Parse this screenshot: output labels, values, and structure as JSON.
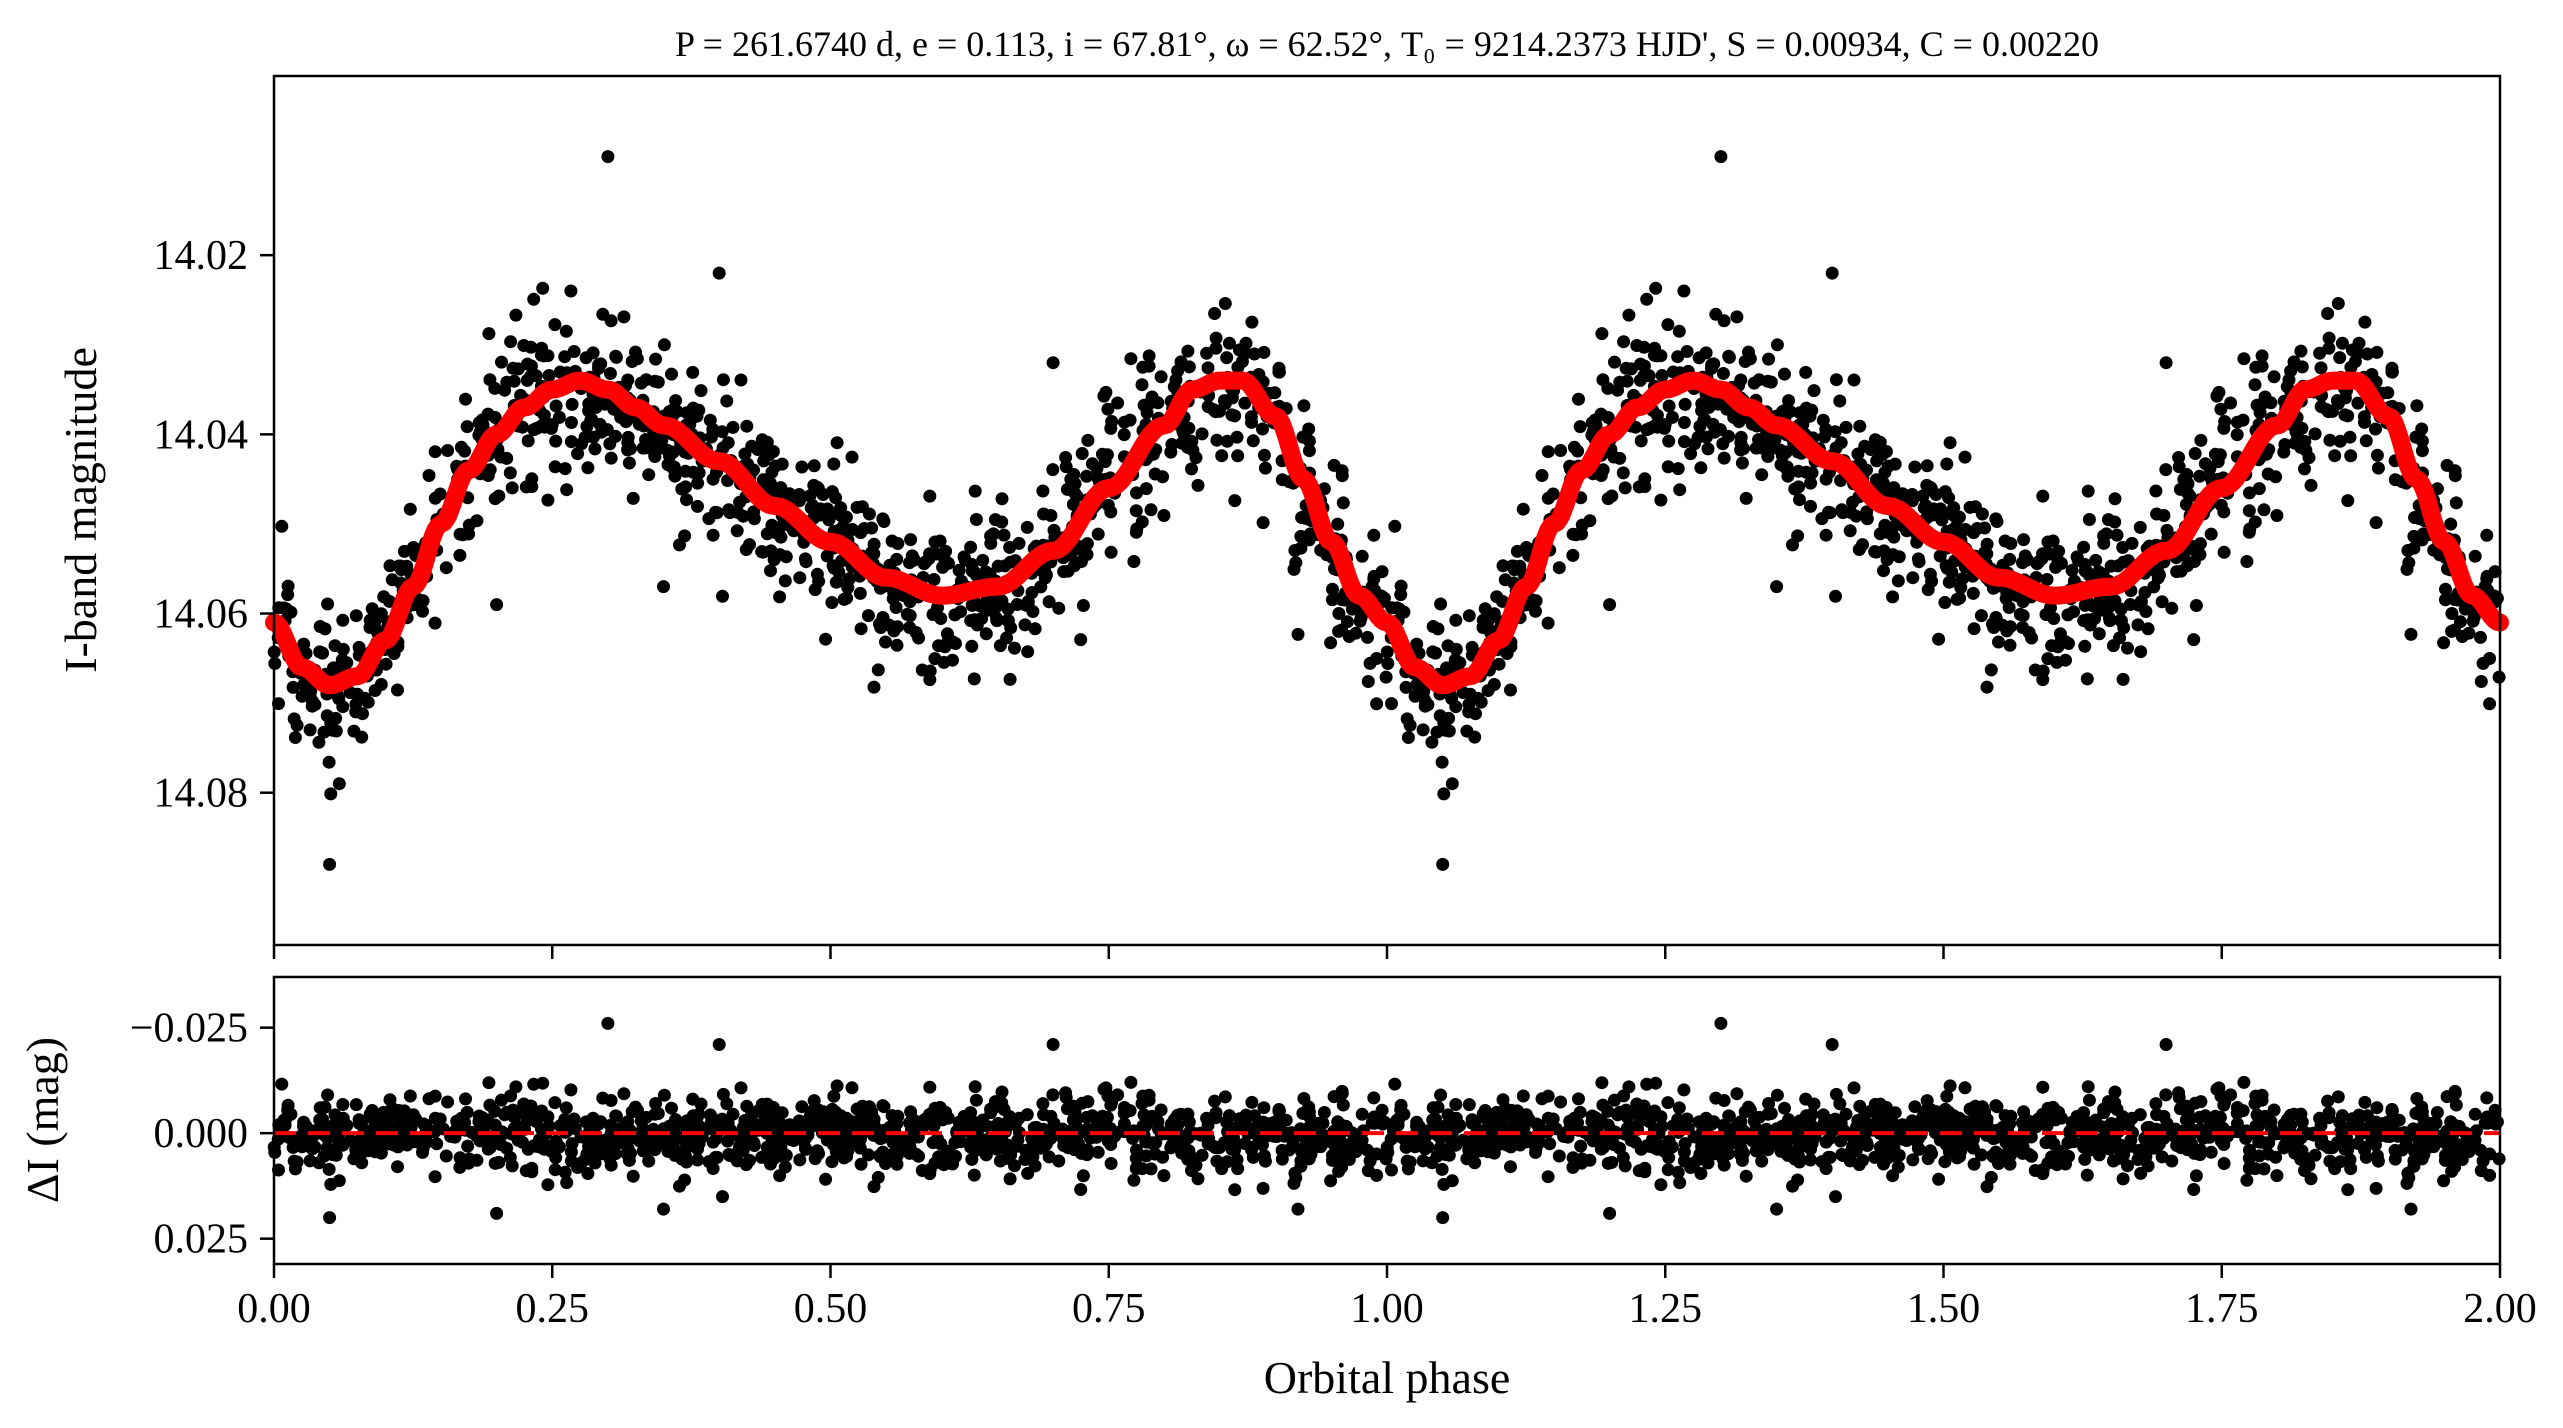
{
  "chart_data": {
    "type": "scatter",
    "title": "P = 261.6740 d, e = 0.113, i = 67.81°, ω = 62.52°, T₀ = 9214.2373 HJD', S = 0.00934, C = 0.00220",
    "xlabel": "Orbital phase",
    "xlim": [
      0.0,
      2.0
    ],
    "x_ticks": [
      "0.00",
      "0.25",
      "0.50",
      "0.75",
      "1.00",
      "1.25",
      "1.50",
      "1.75",
      "2.00"
    ],
    "panels": [
      {
        "name": "light-curve",
        "ylabel": "I-band magnitude",
        "ylim": [
          14.097,
          14.0
        ],
        "y_inverted": true,
        "y_ticks": [
          "14.02",
          "14.04",
          "14.06",
          "14.08"
        ],
        "y_tick_values": [
          14.02,
          14.04,
          14.06,
          14.08
        ],
        "series": [
          {
            "kind": "observations",
            "color": "#000000",
            "note_points": "black points, repeated over two phase cycles",
            "x": [
              0.0,
              0.02,
              0.04,
              0.05,
              0.06,
              0.08,
              0.1,
              0.12,
              0.15,
              0.18,
              0.2,
              0.22,
              0.25,
              0.28,
              0.3,
              0.32,
              0.35,
              0.38,
              0.4,
              0.42,
              0.45,
              0.48,
              0.5,
              0.52,
              0.55,
              0.58,
              0.6,
              0.62,
              0.65,
              0.68,
              0.7,
              0.72,
              0.75,
              0.78,
              0.8,
              0.82,
              0.85,
              0.86,
              0.88,
              0.9,
              0.92,
              0.95,
              0.98,
              1.0,
              0.3,
              0.05,
              0.05,
              0.85,
              0.39
            ],
            "y": [
              14.06,
              14.066,
              14.075,
              14.084,
              14.07,
              14.068,
              14.062,
              14.055,
              14.048,
              14.046,
              14.04,
              14.034,
              14.032,
              14.03,
              14.029,
              14.036,
              14.04,
              14.044,
              14.034,
              14.048,
              14.05,
              14.052,
              14.054,
              14.056,
              14.058,
              14.057,
              14.057,
              14.055,
              14.052,
              14.046,
              14.044,
              14.04,
              14.036,
              14.034,
              14.03,
              14.028,
              14.026,
              14.03,
              14.034,
              14.042,
              14.05,
              14.058,
              14.066,
              14.063,
              14.01,
              14.085,
              14.083,
              14.017,
              14.022
            ]
          },
          {
            "kind": "model",
            "color": "#ff0000",
            "x": [
              0.0,
              0.025,
              0.05,
              0.075,
              0.1,
              0.125,
              0.15,
              0.175,
              0.2,
              0.225,
              0.25,
              0.275,
              0.3,
              0.325,
              0.35,
              0.4,
              0.45,
              0.5,
              0.55,
              0.6,
              0.65,
              0.7,
              0.75,
              0.8,
              0.825,
              0.85,
              0.87,
              0.9,
              0.925,
              0.95,
              0.975,
              1.0
            ],
            "y": [
              14.061,
              14.066,
              14.068,
              14.067,
              14.063,
              14.057,
              14.05,
              14.044,
              14.04,
              14.037,
              14.035,
              14.034,
              14.035,
              14.037,
              14.039,
              14.043,
              14.048,
              14.052,
              14.056,
              14.058,
              14.057,
              14.053,
              14.046,
              14.039,
              14.035,
              14.034,
              14.034,
              14.038,
              14.045,
              14.052,
              14.058,
              14.061
            ]
          }
        ]
      },
      {
        "name": "residuals",
        "ylabel": "ΔI (mag)",
        "ylim": [
          0.031,
          -0.037
        ],
        "y_inverted": true,
        "y_ticks": [
          "−0.025",
          "0.000",
          "0.025"
        ],
        "y_tick_values": [
          -0.025,
          0.0,
          0.025
        ],
        "zero_line": {
          "value": 0.0,
          "color": "#ff0000",
          "style": "dashed"
        },
        "series": [
          {
            "kind": "residuals",
            "color": "#000000",
            "scatter_sigma": 0.006,
            "outliers_x": [
              0.3,
              0.4,
              0.7,
              0.35,
              0.92,
              0.2,
              0.05
            ],
            "outliers_y": [
              -0.026,
              -0.021,
              -0.021,
              0.018,
              0.018,
              0.019,
              0.02
            ]
          }
        ]
      }
    ]
  }
}
